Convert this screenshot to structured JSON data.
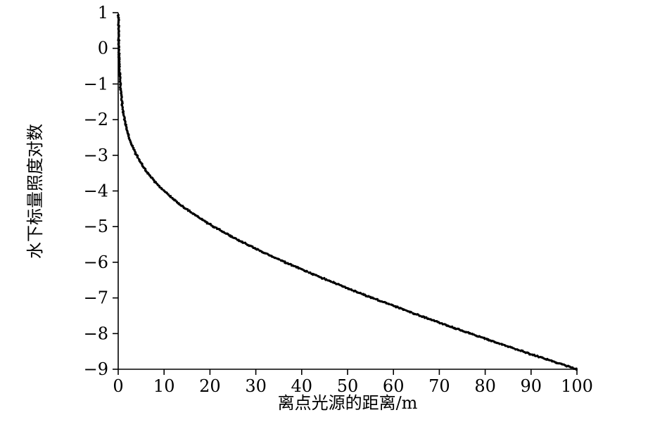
{
  "figure": {
    "background": "#ffffff",
    "axis_color": "#000000"
  },
  "chart_data": {
    "type": "scatter",
    "title": "",
    "xlabel": "离点光源的距离/m",
    "ylabel": "水下标量照度对数",
    "xlim": [
      0,
      100
    ],
    "ylim": [
      -9,
      1
    ],
    "grid": false,
    "legend": null,
    "marker_color": "#000000",
    "x_ticks": [
      0,
      10,
      20,
      30,
      40,
      50,
      60,
      70,
      80,
      90,
      100
    ],
    "x_tick_labels": [
      "0",
      "10",
      "20",
      "30",
      "40",
      "50",
      "60",
      "70",
      "80",
      "90",
      "100"
    ],
    "y_ticks": [
      1,
      0,
      -1,
      -2,
      -3,
      -4,
      -5,
      -6,
      -7,
      -8,
      -9
    ],
    "y_tick_labels": [
      "1",
      "0",
      "−1",
      "−2",
      "−3",
      "−4",
      "−5",
      "−6",
      "−7",
      "−8",
      "−9"
    ],
    "points": [
      [
        0.05,
        0.93
      ],
      [
        0.1,
        0.33
      ],
      [
        0.15,
        -0.02
      ],
      [
        0.2,
        -0.28
      ],
      [
        0.3,
        -0.63
      ],
      [
        0.4,
        -0.88
      ],
      [
        0.5,
        -1.08
      ],
      [
        0.7,
        -1.38
      ],
      [
        1,
        -1.7
      ],
      [
        1.5,
        -2.07
      ],
      [
        2,
        -2.34
      ],
      [
        2.5,
        -2.55
      ],
      [
        3,
        -2.72
      ],
      [
        4,
        -3.0
      ],
      [
        5,
        -3.23
      ],
      [
        6,
        -3.42
      ],
      [
        7,
        -3.59
      ],
      [
        8,
        -3.74
      ],
      [
        9,
        -3.88
      ],
      [
        10,
        -4.0
      ],
      [
        12,
        -4.23
      ],
      [
        14,
        -4.43
      ],
      [
        16,
        -4.61
      ],
      [
        18,
        -4.78
      ],
      [
        20,
        -4.94
      ],
      [
        25,
        -5.3
      ],
      [
        30,
        -5.62
      ],
      [
        35,
        -5.92
      ],
      [
        40,
        -6.2
      ],
      [
        45,
        -6.47
      ],
      [
        50,
        -6.73
      ],
      [
        55,
        -6.98
      ],
      [
        60,
        -7.22
      ],
      [
        65,
        -7.46
      ],
      [
        70,
        -7.69
      ],
      [
        75,
        -7.92
      ],
      [
        80,
        -8.14
      ],
      [
        85,
        -8.36
      ],
      [
        90,
        -8.58
      ],
      [
        95,
        -8.79
      ],
      [
        100,
        -9.0
      ]
    ]
  }
}
